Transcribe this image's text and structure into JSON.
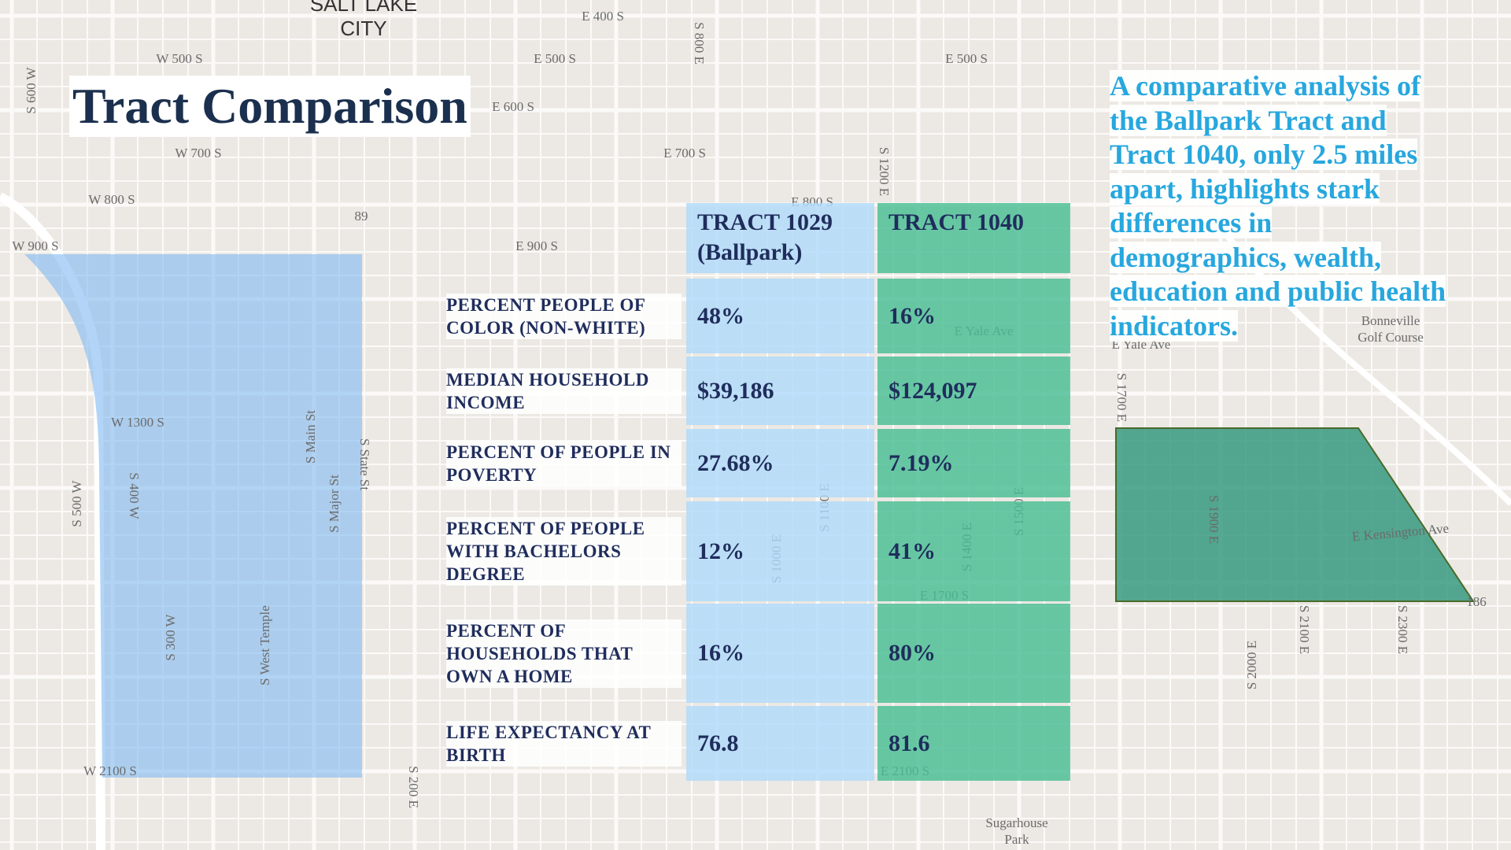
{
  "header": {
    "title": "Tract Comparison"
  },
  "description": "A comparative analysis of the Ballpark Tract and Tract 1040, only 2.5 miles apart, highlights stark differences in demographics, wealth, education and public health indicators.",
  "table": {
    "columns": [
      "TRACT 1029 (Ballpark)",
      "TRACT 1040"
    ],
    "rows": [
      [
        "PERCENT PEOPLE OF COLOR (NON-WHITE)",
        "48%",
        "16%"
      ],
      [
        "MEDIAN HOUSEHOLD INCOME",
        "$39,186",
        "$124,097"
      ],
      [
        "PERCENT OF PEOPLE IN POVERTY",
        "27.68%",
        "7.19%"
      ],
      [
        "PERCENT OF PEOPLE WITH BACHELORS DEGREE",
        "12%",
        "41%"
      ],
      [
        "PERCENT OF HOUSEHOLDS THAT OWN A HOME",
        "16%",
        "80%"
      ],
      [
        "LIFE EXPECTANCY AT BIRTH",
        "76.8",
        "81.6"
      ]
    ]
  },
  "map": {
    "labels": [
      "SALT LAKE",
      "CITY",
      "E 400 S",
      "W 500 S",
      "E 500 S",
      "E 500 S",
      "E 600 S",
      "W 700 S",
      "E 700 S",
      "W 800 S",
      "E 800 S",
      "W 900 S",
      "E 900 S",
      "89",
      "W 1300 S",
      "S Main St",
      "S State St",
      "S Major St",
      "S West Temple",
      "S 300 W",
      "S 500 W",
      "S 400 W",
      "W 2100 S",
      "E 2100 S",
      "S 200 E",
      "E Yale Ave",
      "E Yale Ave",
      "Bonneville",
      "Golf Course",
      "E Kensington Ave",
      "186",
      "S 1900 E",
      "S 2000 E",
      "S 2100 E",
      "S 2300 E",
      "S 1700 E",
      "S 1100 E",
      "S 1000 E",
      "S 1400 E",
      "S 1500 E",
      "E 1700 S",
      "Sugarhouse",
      "Park",
      "S 800 E",
      "S 600 W",
      "S 1200 E"
    ]
  }
}
